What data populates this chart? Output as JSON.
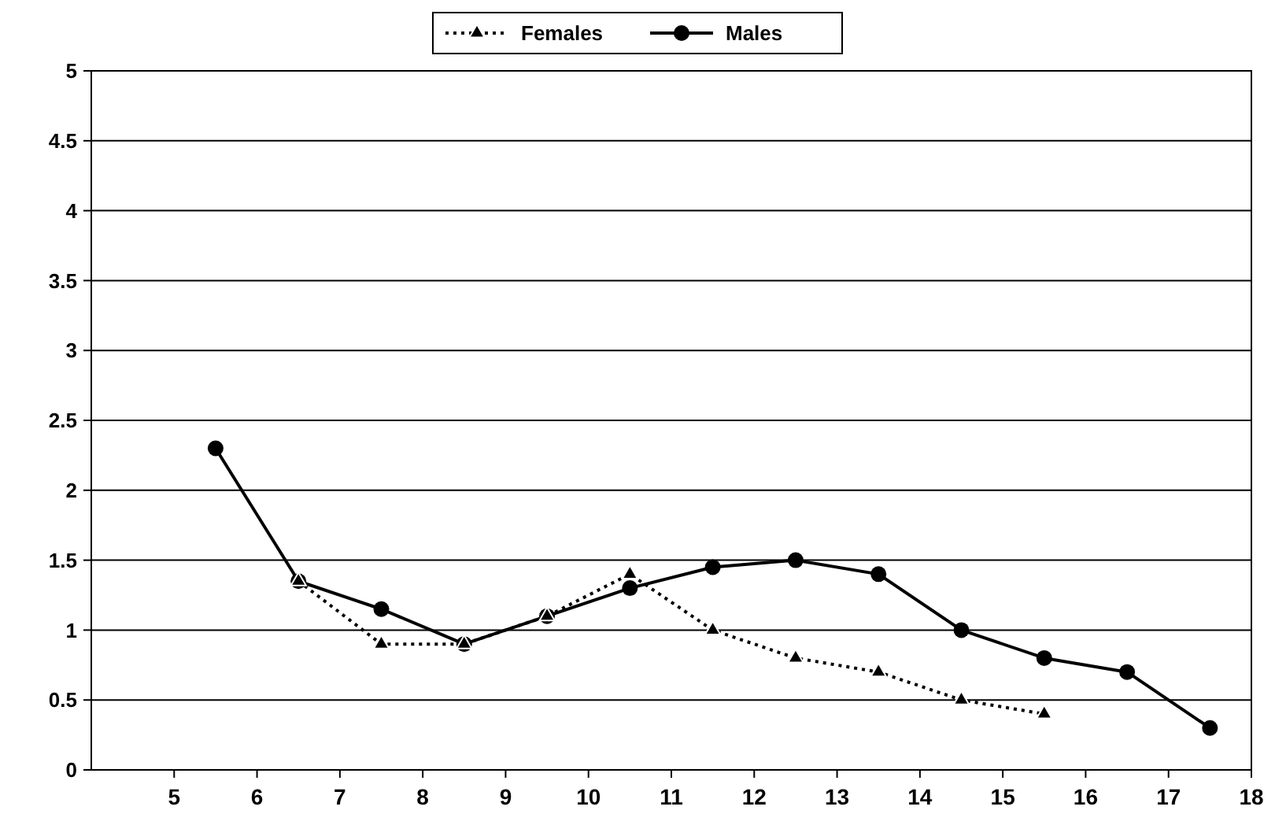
{
  "chart_data": {
    "type": "line",
    "x": [
      5.5,
      6.5,
      7.5,
      8.5,
      9.5,
      10.5,
      11.5,
      12.5,
      13.5,
      14.5,
      15.5,
      16.5,
      17.5
    ],
    "series": [
      {
        "name": "Females",
        "color": "#000000",
        "marker": "triangle",
        "line_style": "dotted",
        "values": [
          null,
          1.35,
          0.9,
          0.9,
          1.1,
          1.4,
          1.0,
          0.8,
          0.7,
          0.5,
          0.4,
          null,
          null
        ]
      },
      {
        "name": "Males",
        "color": "#000000",
        "marker": "circle",
        "line_style": "solid",
        "values": [
          2.3,
          1.35,
          1.15,
          0.9,
          1.1,
          1.3,
          1.45,
          1.5,
          1.4,
          1.0,
          0.8,
          0.7,
          0.3
        ]
      }
    ],
    "xlim": [
      4,
      18
    ],
    "xticks": [
      5,
      6,
      7,
      8,
      9,
      10,
      11,
      12,
      13,
      14,
      15,
      16,
      17,
      18
    ],
    "ylim": [
      0,
      5
    ],
    "yticks": [
      0,
      0.5,
      1,
      1.5,
      2,
      2.5,
      3,
      3.5,
      4,
      4.5,
      5
    ],
    "grid": "y",
    "legend": "top"
  }
}
